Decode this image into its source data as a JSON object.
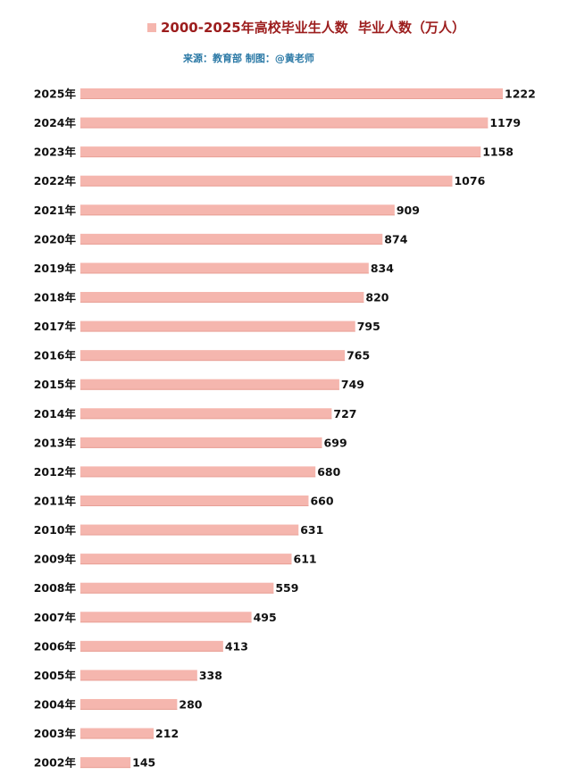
{
  "chart_data": {
    "type": "bar",
    "orientation": "horizontal",
    "title": "2000-2025年高校毕业生人数",
    "subtitle": "来源：教育部  制图：@黄老师",
    "categories": [
      "2025年",
      "2024年",
      "2023年",
      "2022年",
      "2021年",
      "2020年",
      "2019年",
      "2018年",
      "2017年",
      "2016年",
      "2015年",
      "2014年",
      "2013年",
      "2012年",
      "2011年",
      "2010年",
      "2009年",
      "2008年",
      "2007年",
      "2006年",
      "2005年",
      "2004年",
      "2003年",
      "2002年"
    ],
    "series": [
      {
        "name": "毕业人数（万人）",
        "values": [
          1222,
          1179,
          1158,
          1076,
          909,
          874,
          834,
          820,
          795,
          765,
          749,
          727,
          699,
          680,
          660,
          631,
          611,
          559,
          495,
          413,
          338,
          280,
          212,
          145
        ]
      }
    ],
    "xlim": [
      0,
      1222
    ],
    "grid": false,
    "legend": "top",
    "data_labels": true
  },
  "colors": {
    "bar": "#f5b6ae",
    "bar_edge": "#e8a096",
    "title": "#9c1d1d",
    "subtitle": "#2b79a6",
    "label": "#111111"
  }
}
